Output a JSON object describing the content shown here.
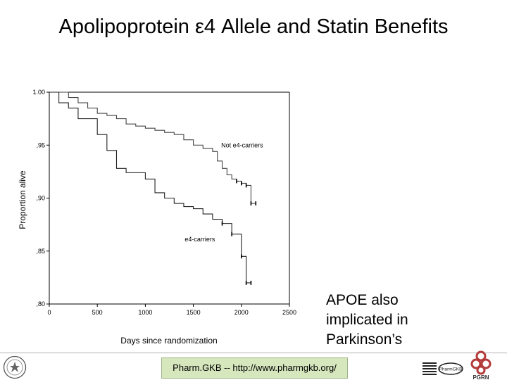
{
  "slide": {
    "title": "Apolipoprotein ε4 Allele and Statin Benefits",
    "note_lines": [
      "APOE also",
      "implicated in",
      "Parkinson’s"
    ],
    "footer": "Pharm.GKB -- http://www.pharmgkb.org/",
    "pgrn_label": "PGRN",
    "pharmgkb_logo_text": "PharmGKB"
  },
  "chart_data": {
    "type": "line",
    "title": "",
    "xlabel": "Days since randomization",
    "ylabel": "Proportion alive",
    "xlim": [
      0,
      2500
    ],
    "ylim": [
      0.8,
      1.0
    ],
    "x_ticks": [
      0,
      500,
      1000,
      1500,
      2000,
      2500
    ],
    "x_tick_labels": [
      "0",
      "500",
      "1000",
      "1500",
      "2000",
      "2500"
    ],
    "y_ticks": [
      1.0,
      0.95,
      0.9,
      0.85,
      0.8
    ],
    "y_tick_labels": [
      "1.00",
      ",95",
      ",90",
      ",85",
      ",80"
    ],
    "grid": false,
    "series": [
      {
        "name": "Not e4-carriers",
        "x": [
          0,
          200,
          300,
          400,
          500,
          600,
          700,
          800,
          900,
          1000,
          1100,
          1200,
          1300,
          1400,
          1500,
          1600,
          1700,
          1750,
          1800,
          1850,
          1900,
          1950,
          2000,
          2050,
          2100,
          2150
        ],
        "y": [
          1.0,
          0.995,
          0.99,
          0.985,
          0.98,
          0.978,
          0.975,
          0.97,
          0.968,
          0.966,
          0.964,
          0.962,
          0.96,
          0.955,
          0.95,
          0.947,
          0.944,
          0.935,
          0.928,
          0.922,
          0.918,
          0.916,
          0.914,
          0.912,
          0.895,
          0.895
        ]
      },
      {
        "name": "e4-carriers",
        "x": [
          0,
          100,
          200,
          300,
          500,
          600,
          700,
          800,
          1000,
          1100,
          1200,
          1300,
          1400,
          1500,
          1600,
          1700,
          1800,
          1900,
          2000,
          2050,
          2100
        ],
        "y": [
          1.0,
          0.99,
          0.985,
          0.975,
          0.96,
          0.945,
          0.928,
          0.924,
          0.918,
          0.905,
          0.9,
          0.895,
          0.892,
          0.89,
          0.885,
          0.88,
          0.876,
          0.866,
          0.845,
          0.82,
          0.82
        ]
      }
    ],
    "annotations": [
      {
        "text": "Not e4-carriers",
        "x": 1790,
        "y": 0.948
      },
      {
        "text": "e4-carriers",
        "x": 1410,
        "y": 0.859
      }
    ]
  }
}
